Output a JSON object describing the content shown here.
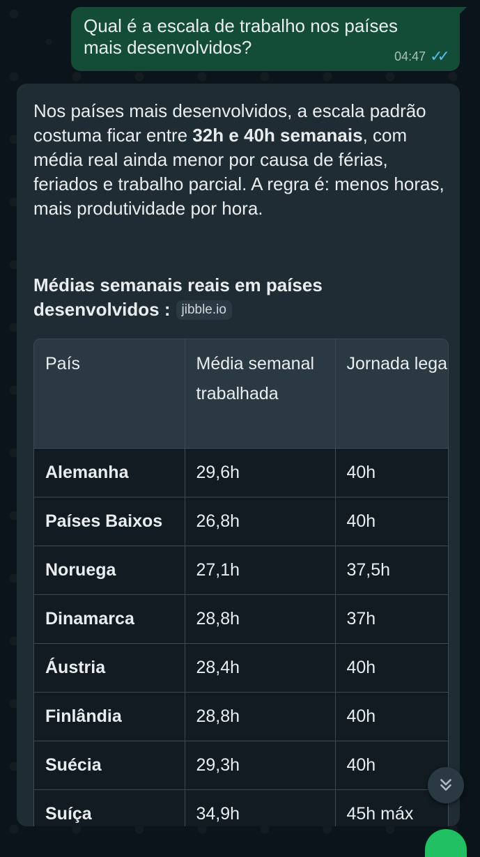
{
  "outgoing": {
    "text": "Qual é  a escala de trabalho nos países\nmais desenvolvidos?",
    "time": "04:47",
    "status_icon": "double-check-read-icon",
    "status_color": "#53bdeb"
  },
  "incoming": {
    "para_part1": "Nos países mais desenvolvidos, a escala padrão costuma ficar entre ",
    "para_bold": "32h e 40h semanais",
    "para_part2": ", com média real ainda menor por causa de férias, feriados e trabalho parcial. A regra é: menos horas, mais produtividade por hora.",
    "heading": "Médias semanais reais em países desenvolvidos :",
    "source_label": "jibble.io"
  },
  "table": {
    "headers": [
      "País",
      "Média semanal trabalhada",
      "Jornada legal"
    ],
    "rows": [
      [
        "Alemanha",
        "29,6h",
        "40h"
      ],
      [
        "Países Baixos",
        "26,8h",
        "40h"
      ],
      [
        "Noruega",
        "27,1h",
        "37,5h"
      ],
      [
        "Dinamarca",
        "28,8h",
        "37h"
      ],
      [
        "Áustria",
        "28,4h",
        "40h"
      ],
      [
        "Finlândia",
        "28,8h",
        "40h"
      ],
      [
        "Suécia",
        "29,3h",
        "40h"
      ],
      [
        "Suíça",
        "34,9h",
        "45h máx"
      ]
    ]
  },
  "scroll_button": {
    "icon": "double-chevron-down-icon"
  },
  "colors": {
    "background": "#0b141a",
    "outgoing_bubble": "#144d37",
    "incoming_bubble": "#202c33",
    "table_header": "#2a3942",
    "fab_green": "#21c063"
  }
}
